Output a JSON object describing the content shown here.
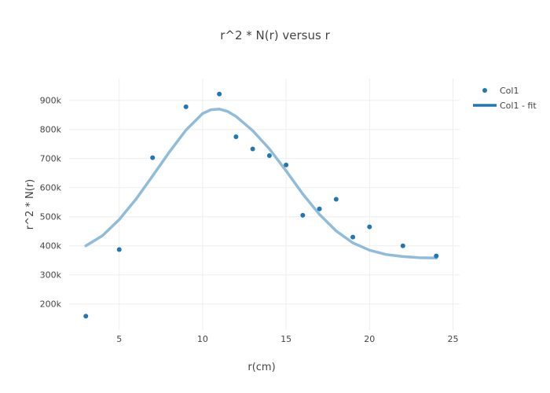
{
  "chart_data": {
    "type": "scatter",
    "title": "r^2 * N(r) versus r",
    "xlabel": "r(cm)",
    "ylabel": "r^2 * N(r)",
    "xlim": [
      2.0,
      25.4
    ],
    "ylim": [
      110000,
      975000
    ],
    "x_ticks": [
      5,
      10,
      15,
      20,
      25
    ],
    "x_tick_labels": [
      "5",
      "10",
      "15",
      "20",
      "25"
    ],
    "y_ticks": [
      200000,
      300000,
      400000,
      500000,
      600000,
      700000,
      800000,
      900000
    ],
    "y_tick_labels": [
      "200k",
      "300k",
      "400k",
      "500k",
      "600k",
      "700k",
      "800k",
      "900k"
    ],
    "grid": true,
    "legend_position": "top-right",
    "series": [
      {
        "name": "Col1",
        "mode": "markers",
        "color": "#1f77b4",
        "x": [
          3,
          5,
          7,
          9,
          11,
          12,
          13,
          14,
          15,
          16,
          17,
          18,
          19,
          20,
          22,
          24
        ],
        "y": [
          158000,
          387000,
          703000,
          878000,
          922000,
          775000,
          733000,
          710000,
          678000,
          505000,
          527000,
          560000,
          430000,
          465000,
          400000,
          365000
        ]
      },
      {
        "name": "Col1 - fit",
        "mode": "lines",
        "color": "#8fbcdb",
        "x": [
          3,
          4,
          5,
          6,
          7,
          8,
          9,
          10,
          10.5,
          11,
          11.5,
          12,
          13,
          14,
          15,
          16,
          17,
          18,
          19,
          20,
          21,
          22,
          23,
          24
        ],
        "y": [
          400000,
          435000,
          490000,
          560000,
          640000,
          722000,
          798000,
          855000,
          868000,
          870000,
          862000,
          845000,
          796000,
          733000,
          658000,
          578000,
          508000,
          451000,
          410000,
          385000,
          370000,
          363000,
          359000,
          358000
        ]
      }
    ]
  }
}
